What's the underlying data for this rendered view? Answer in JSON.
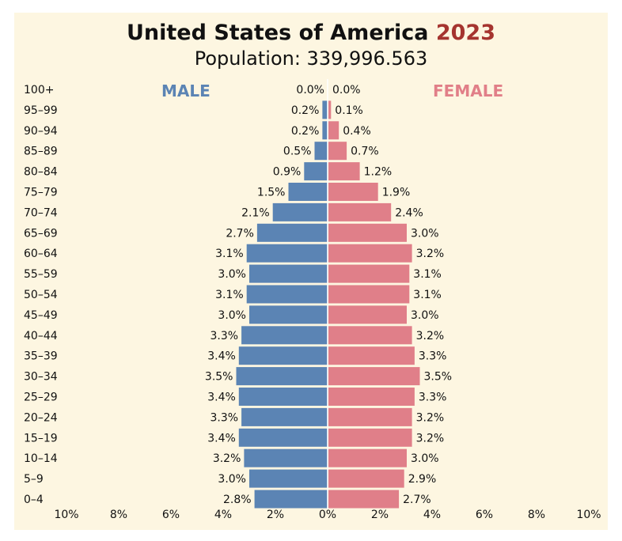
{
  "title": "United States of America",
  "year": "2023",
  "subtitle": "Population: 339,996.563",
  "left_label": "MALE",
  "right_label": "FEMALE",
  "colors": {
    "male": "#5b84b4",
    "female": "#e07f89",
    "title_year": "#a5342f",
    "background": "#fdf6e1"
  },
  "chart_data": {
    "type": "bar",
    "orientation": "horizontal-diverging",
    "categories": [
      "100+",
      "95–99",
      "90–94",
      "85–89",
      "80–84",
      "75–79",
      "70–74",
      "65–69",
      "60–64",
      "55–59",
      "50–54",
      "45–49",
      "40–44",
      "35–39",
      "30–34",
      "25–29",
      "20–24",
      "15–19",
      "10–14",
      "5–9",
      "0–4"
    ],
    "series": [
      {
        "name": "MALE",
        "values": [
          0.0,
          0.2,
          0.2,
          0.5,
          0.9,
          1.5,
          2.1,
          2.7,
          3.1,
          3.0,
          3.1,
          3.0,
          3.3,
          3.4,
          3.5,
          3.4,
          3.3,
          3.4,
          3.2,
          3.0,
          2.8
        ]
      },
      {
        "name": "FEMALE",
        "values": [
          0.0,
          0.1,
          0.4,
          0.7,
          1.2,
          1.9,
          2.4,
          3.0,
          3.2,
          3.1,
          3.1,
          3.0,
          3.2,
          3.3,
          3.5,
          3.3,
          3.2,
          3.2,
          3.0,
          2.9,
          2.7
        ]
      }
    ],
    "value_labels": {
      "male": [
        "0.0%",
        "0.2%",
        "0.2%",
        "0.5%",
        "0.9%",
        "1.5%",
        "2.1%",
        "2.7%",
        "3.1%",
        "3.0%",
        "3.1%",
        "3.0%",
        "3.3%",
        "3.4%",
        "3.5%",
        "3.4%",
        "3.3%",
        "3.4%",
        "3.2%",
        "3.0%",
        "2.8%"
      ],
      "female": [
        "0.0%",
        "0.1%",
        "0.4%",
        "0.7%",
        "1.2%",
        "1.9%",
        "2.4%",
        "3.0%",
        "3.2%",
        "3.1%",
        "3.1%",
        "3.0%",
        "3.2%",
        "3.3%",
        "3.5%",
        "3.3%",
        "3.2%",
        "3.2%",
        "3.0%",
        "2.9%",
        "2.7%"
      ]
    },
    "x_ticks": [
      "10%",
      "8%",
      "6%",
      "4%",
      "2%",
      "0%",
      "2%",
      "4%",
      "6%",
      "8%",
      "10%"
    ],
    "xlim": [
      -10,
      10
    ],
    "unit": "%"
  }
}
